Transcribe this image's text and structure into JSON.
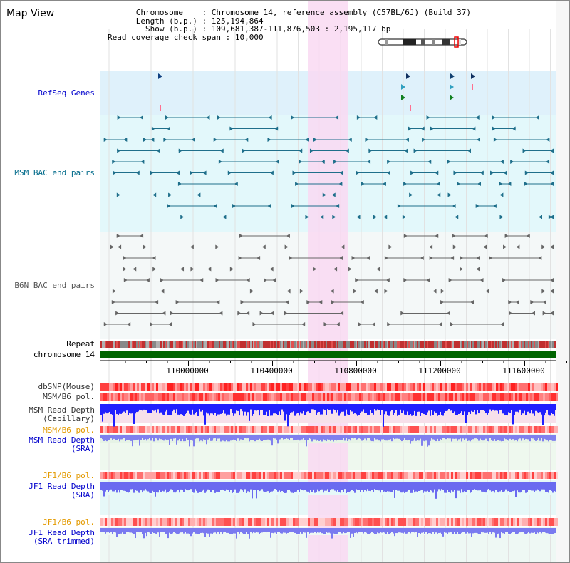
{
  "title": "Map View",
  "info": {
    "chromosome_key": "Chromosome",
    "chromosome_value": "Chromosome 14, reference assembly (C57BL/6J) (Build 37)",
    "length_key": "Length (b.p.)",
    "length_value": "125,194,864",
    "show_key": "Show (b.p.)",
    "show_value": "109,681,387-111,876,503 : 2,195,117 bp",
    "coverage_key": "Read coverage check span",
    "coverage_value": "10,000"
  },
  "tracks": {
    "refseq_genes": "RefSeq Genes",
    "msm_bac": "MSM BAC end pairs",
    "b6n_bac": "B6N BAC end pairs",
    "repeat": "Repeat",
    "chromosome": "chromosome 14",
    "dbsnp": "dbSNP(Mouse)",
    "msm_b6_pol_1": "MSM/B6 pol.",
    "msm_read_depth_cap_1": "MSM Read Depth",
    "msm_read_depth_cap_2": "(Capillary)",
    "msm_b6_pol_2": "MSM/B6 pol.",
    "msm_read_depth_sra_1": "MSM Read Depth",
    "msm_read_depth_sra_2": "(SRA)",
    "jf1_b6_pol_1": "JF1/B6 pol.",
    "jf1_read_depth_sra_1": "JF1 Read Depth",
    "jf1_read_depth_sra_2": "(SRA)",
    "jf1_b6_pol_2": "JF1/B6 pol.",
    "jf1_read_depth_trim_1": "JF1 Read Depth",
    "jf1_read_depth_trim_2": "(SRA trimmed)"
  },
  "axis": {
    "ticks": [
      "110000000",
      "110400000",
      "110800000",
      "111200000",
      "111600000"
    ]
  },
  "colors": {
    "refseq_bg": "#dff1fb",
    "msm_bg": "#e3f8fb",
    "b6n_bg": "#f4f8f8",
    "highlight": "#f9d9f2",
    "chromosome_bar": "#006400",
    "refseq_label": "#0000cc",
    "msm_label": "#006a8a",
    "b6n_label": "#555555",
    "orange_label": "#e39a00",
    "blue_label": "#0000cc"
  }
}
